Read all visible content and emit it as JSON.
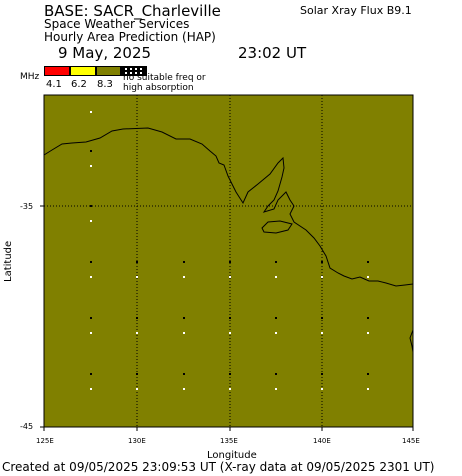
{
  "header": {
    "base_title": "BASE: SACR_Charleville",
    "service": "Space Weather Services",
    "product": "Hourly Area Prediction (HAP)",
    "date": "9 May, 2025",
    "time": "23:02 UT",
    "xray_flux": "Solar Xray Flux B9.1"
  },
  "legend": {
    "unit": "MHz",
    "labels": [
      "4.1",
      "6.2",
      "8.3"
    ],
    "colors": [
      "#ff0000",
      "#ffff00",
      "#808000"
    ],
    "no_freq_line1": "no suitable freq or",
    "no_freq_line2": "high absorption"
  },
  "map": {
    "fill_color": "#808000",
    "lon_range": [
      125,
      145
    ],
    "lat_range": [
      -45,
      -25
    ],
    "lat_ticks": [
      {
        "value": -35,
        "label": "-35"
      },
      {
        "value": -45,
        "label": "-45"
      }
    ],
    "lon_ticks": [
      {
        "value": 125,
        "label": "125E"
      },
      {
        "value": 130,
        "label": "130E"
      },
      {
        "value": 135,
        "label": "135E"
      },
      {
        "value": 140,
        "label": "140E"
      },
      {
        "value": 145,
        "label": "145E"
      }
    ],
    "ylabel": "Latitude",
    "xlabel": "Longitude"
  },
  "footer": "Created at 09/05/2025 23:09:53 UT (X-ray data at 09/05/2025 2301 UT)"
}
